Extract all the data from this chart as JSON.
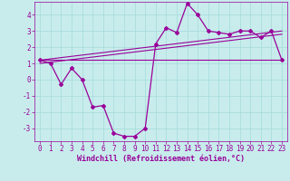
{
  "xlabel": "Windchill (Refroidissement éolien,°C)",
  "bg_color": "#c8ecec",
  "grid_color": "#aadddd",
  "line_color": "#990099",
  "xlim": [
    -0.5,
    23.5
  ],
  "ylim": [
    -3.8,
    4.8
  ],
  "yticks": [
    -3,
    -2,
    -1,
    0,
    1,
    2,
    3,
    4
  ],
  "xticks": [
    0,
    1,
    2,
    3,
    4,
    5,
    6,
    7,
    8,
    9,
    10,
    11,
    12,
    13,
    14,
    15,
    16,
    17,
    18,
    19,
    20,
    21,
    22,
    23
  ],
  "xticklabels": [
    "0",
    "1",
    "2",
    "3",
    "4",
    "5",
    "6",
    "7",
    "8",
    "9",
    "10",
    "11",
    "12",
    "13",
    "14",
    "15",
    "16",
    "17",
    "18",
    "19",
    "20",
    "21",
    "22",
    "23"
  ],
  "main_x": [
    0,
    1,
    2,
    3,
    4,
    5,
    6,
    7,
    8,
    9,
    10,
    11,
    12,
    13,
    14,
    15,
    16,
    17,
    18,
    19,
    20,
    21,
    22,
    23
  ],
  "main_y": [
    1.2,
    1.0,
    -0.3,
    0.7,
    0.0,
    -1.7,
    -1.6,
    -3.3,
    -3.5,
    -3.5,
    -3.0,
    2.2,
    3.2,
    2.9,
    4.7,
    4.0,
    3.0,
    2.9,
    2.8,
    3.0,
    3.0,
    2.6,
    3.0,
    1.2
  ],
  "line1_x": [
    0,
    23
  ],
  "line1_y": [
    1.2,
    1.2
  ],
  "line2_x": [
    0,
    23
  ],
  "line2_y": [
    1.2,
    3.0
  ],
  "line3_x": [
    0,
    23
  ],
  "line3_y": [
    1.0,
    2.8
  ],
  "tick_fontsize": 5.5,
  "xlabel_fontsize": 6.0
}
